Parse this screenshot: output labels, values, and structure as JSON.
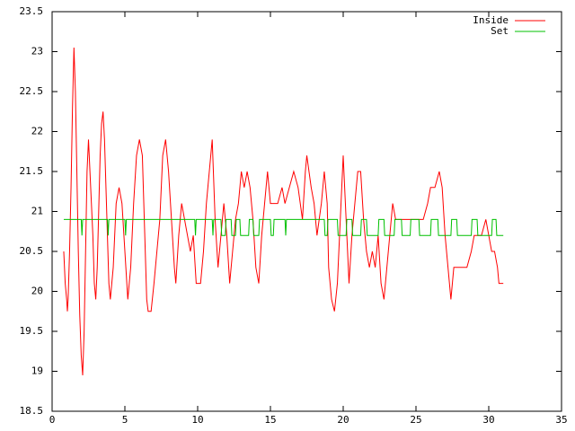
{
  "chart_data": {
    "type": "line",
    "xlim": [
      0,
      35
    ],
    "xticks": [
      0,
      5,
      10,
      15,
      20,
      25,
      30,
      35
    ],
    "ylim": [
      18.5,
      23.5
    ],
    "yticks": [
      18.5,
      19,
      19.5,
      20,
      20.5,
      21,
      21.5,
      22,
      22.5,
      23,
      23.5
    ],
    "legend": "upper right",
    "series": [
      {
        "name": "Inside",
        "color": "#ff0000",
        "x": [
          0.8,
          0.9,
          1.0,
          1.05,
          1.1,
          1.2,
          1.3,
          1.4,
          1.5,
          1.6,
          1.7,
          1.8,
          1.9,
          2.0,
          2.1,
          2.2,
          2.3,
          2.4,
          2.5,
          2.6,
          2.7,
          2.8,
          2.9,
          3.0,
          3.1,
          3.2,
          3.3,
          3.4,
          3.5,
          3.6,
          3.7,
          3.8,
          3.9,
          4.0,
          4.2,
          4.4,
          4.6,
          4.8,
          5.0,
          5.2,
          5.4,
          5.6,
          5.8,
          6.0,
          6.2,
          6.4,
          6.5,
          6.6,
          6.8,
          7.0,
          7.2,
          7.4,
          7.6,
          7.8,
          8.0,
          8.2,
          8.4,
          8.5,
          8.7,
          8.9,
          9.1,
          9.3,
          9.5,
          9.7,
          9.9,
          10.2,
          10.4,
          10.6,
          10.8,
          11.0,
          11.2,
          11.4,
          11.6,
          11.8,
          12.0,
          12.2,
          12.4,
          12.6,
          12.8,
          13.0,
          13.2,
          13.4,
          13.6,
          13.8,
          14.0,
          14.2,
          14.4,
          14.6,
          14.8,
          15.0,
          15.2,
          15.5,
          15.8,
          16.0,
          16.3,
          16.6,
          16.9,
          17.2,
          17.4,
          17.5,
          17.8,
          18.0,
          18.2,
          18.5,
          18.7,
          18.9,
          19.0,
          19.2,
          19.4,
          19.6,
          19.8,
          20.0,
          20.2,
          20.4,
          20.6,
          20.8,
          21.0,
          21.2,
          21.4,
          21.6,
          21.8,
          22.0,
          22.2,
          22.4,
          22.6,
          22.8,
          23.0,
          23.2,
          23.4,
          23.6,
          24.0,
          24.5,
          25.0,
          25.5,
          25.8,
          26.0,
          26.3,
          26.6,
          26.8,
          27.0,
          27.2,
          27.4,
          27.6,
          28.0,
          28.5,
          28.8,
          29.0,
          29.5,
          29.8,
          30.0,
          30.2,
          30.4,
          30.6,
          30.7,
          31.0
        ],
        "values": [
          20.5,
          20.1,
          19.9,
          19.75,
          19.9,
          20.5,
          21.3,
          22.3,
          23.05,
          22.5,
          21.5,
          20.5,
          19.7,
          19.2,
          18.95,
          19.5,
          20.5,
          21.5,
          21.9,
          21.5,
          21.1,
          20.7,
          20.1,
          19.9,
          20.3,
          21.0,
          21.7,
          22.1,
          22.25,
          21.9,
          21.3,
          20.7,
          20.1,
          19.9,
          20.3,
          21.1,
          21.3,
          21.1,
          20.5,
          19.9,
          20.3,
          21.1,
          21.7,
          21.9,
          21.7,
          20.5,
          19.9,
          19.75,
          19.75,
          20.1,
          20.5,
          20.9,
          21.7,
          21.9,
          21.5,
          20.9,
          20.3,
          20.1,
          20.7,
          21.1,
          20.9,
          20.7,
          20.5,
          20.7,
          20.1,
          20.1,
          20.5,
          21.1,
          21.5,
          21.9,
          20.9,
          20.3,
          20.7,
          21.1,
          20.7,
          20.1,
          20.5,
          20.9,
          21.1,
          21.5,
          21.3,
          21.5,
          21.3,
          20.9,
          20.3,
          20.1,
          20.7,
          21.1,
          21.5,
          21.1,
          21.1,
          21.1,
          21.3,
          21.1,
          21.3,
          21.5,
          21.3,
          20.9,
          21.5,
          21.7,
          21.3,
          21.1,
          20.7,
          21.1,
          21.5,
          21.1,
          20.3,
          19.9,
          19.75,
          20.1,
          20.9,
          21.7,
          20.9,
          20.1,
          20.7,
          21.1,
          21.5,
          21.5,
          20.9,
          20.5,
          20.3,
          20.5,
          20.3,
          20.7,
          20.1,
          19.9,
          20.3,
          20.7,
          21.1,
          20.9,
          20.9,
          20.9,
          20.9,
          20.9,
          21.1,
          21.3,
          21.3,
          21.5,
          21.3,
          20.7,
          20.3,
          19.9,
          20.3,
          20.3,
          20.3,
          20.5,
          20.7,
          20.7,
          20.9,
          20.7,
          20.5,
          20.5,
          20.3,
          20.1,
          20.1
        ]
      },
      {
        "name": "Set",
        "color": "#00c000",
        "x": [
          0.8,
          2.0,
          2.05,
          2.1,
          3.8,
          3.85,
          3.9,
          5.0,
          5.05,
          5.1,
          9.8,
          9.85,
          9.9,
          11.0,
          11.05,
          11.1,
          11.6,
          11.65,
          11.9,
          11.95,
          12.3,
          12.35,
          12.6,
          12.65,
          12.9,
          12.95,
          13.5,
          13.55,
          13.8,
          13.85,
          14.2,
          14.25,
          15.0,
          15.05,
          15.2,
          15.25,
          16.0,
          16.05,
          16.1,
          18.7,
          18.75,
          18.9,
          18.95,
          19.6,
          19.65,
          20.2,
          20.25,
          20.6,
          20.65,
          21.2,
          21.25,
          21.6,
          21.65,
          22.4,
          22.45,
          22.8,
          22.85,
          23.5,
          23.55,
          24.0,
          24.05,
          24.6,
          24.65,
          25.2,
          25.25,
          26.0,
          26.05,
          26.5,
          26.55,
          27.4,
          27.45,
          27.8,
          27.85,
          28.8,
          28.85,
          29.2,
          29.25,
          30.2,
          30.25,
          30.5,
          30.55,
          31.0
        ],
        "values": [
          20.9,
          20.9,
          20.7,
          20.9,
          20.9,
          20.7,
          20.9,
          20.9,
          20.7,
          20.9,
          20.9,
          20.7,
          20.9,
          20.9,
          20.7,
          20.9,
          20.9,
          20.7,
          20.7,
          20.9,
          20.9,
          20.7,
          20.7,
          20.9,
          20.9,
          20.7,
          20.7,
          20.9,
          20.9,
          20.7,
          20.7,
          20.9,
          20.9,
          20.7,
          20.7,
          20.9,
          20.9,
          20.7,
          20.9,
          20.9,
          20.7,
          20.7,
          20.9,
          20.9,
          20.7,
          20.7,
          20.9,
          20.9,
          20.7,
          20.7,
          20.9,
          20.9,
          20.7,
          20.7,
          20.9,
          20.9,
          20.7,
          20.7,
          20.9,
          20.9,
          20.7,
          20.7,
          20.9,
          20.9,
          20.7,
          20.7,
          20.9,
          20.9,
          20.7,
          20.7,
          20.9,
          20.9,
          20.7,
          20.7,
          20.9,
          20.9,
          20.7,
          20.7,
          20.9,
          20.9,
          20.7,
          20.7
        ]
      }
    ]
  }
}
